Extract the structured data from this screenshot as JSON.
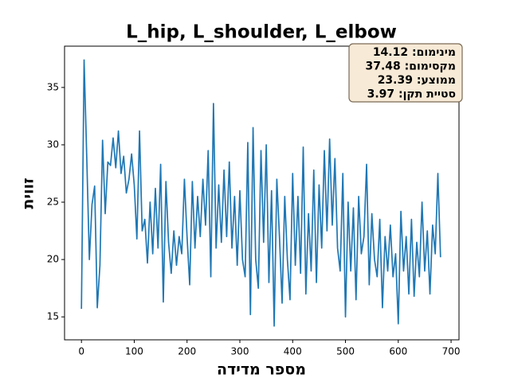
{
  "chart_data": {
    "type": "line",
    "title": "L_hip, L_shoulder, L_elbow",
    "x_label": "מספר מדידה",
    "y_label": "זווית",
    "annotations": [
      "מינימום: 14.12",
      "מקסימום: 37.48",
      "ממוצע: 23.39",
      "סטיית תקן: 3.97"
    ],
    "x": [
      0,
      5,
      10,
      15,
      20,
      25,
      30,
      35,
      40,
      45,
      50,
      55,
      60,
      65,
      70,
      75,
      80,
      85,
      90,
      95,
      100,
      105,
      110,
      115,
      120,
      125,
      130,
      135,
      140,
      145,
      150,
      155,
      160,
      165,
      170,
      175,
      180,
      185,
      190,
      195,
      200,
      205,
      210,
      215,
      220,
      225,
      230,
      235,
      240,
      245,
      250,
      255,
      260,
      265,
      270,
      275,
      280,
      285,
      290,
      295,
      300,
      305,
      310,
      315,
      320,
      325,
      330,
      335,
      340,
      345,
      350,
      355,
      360,
      365,
      370,
      375,
      380,
      385,
      390,
      395,
      400,
      405,
      410,
      415,
      420,
      425,
      430,
      435,
      440,
      445,
      450,
      455,
      460,
      465,
      470,
      475,
      480,
      485,
      490,
      495,
      500,
      505,
      510,
      515,
      520,
      525,
      530,
      535,
      540,
      545,
      550,
      555,
      560,
      565,
      570,
      575,
      580,
      585,
      590,
      595,
      600,
      605,
      610,
      615,
      620,
      625,
      630,
      635,
      640,
      645,
      650,
      655,
      660,
      665,
      670,
      675,
      680
    ],
    "series": [
      {
        "name": "L_hip, L_shoulder, L_elbow",
        "color": "#1f77b4",
        "values": [
          15.7,
          37.4,
          29.0,
          20.0,
          24.8,
          26.4,
          15.8,
          19.5,
          30.4,
          24.0,
          28.5,
          28.2,
          30.6,
          28.0,
          31.2,
          27.5,
          29.0,
          25.8,
          27.0,
          29.2,
          26.5,
          21.8,
          31.2,
          22.5,
          23.5,
          19.7,
          25.0,
          20.5,
          26.2,
          21.0,
          28.3,
          16.3,
          26.8,
          21.5,
          18.8,
          22.5,
          19.5,
          22.0,
          20.5,
          27.0,
          22.0,
          17.8,
          26.8,
          21.0,
          25.5,
          22.0,
          27.0,
          23.0,
          29.5,
          18.5,
          33.6,
          21.0,
          26.5,
          21.5,
          27.8,
          22.0,
          28.5,
          21.0,
          25.5,
          19.5,
          26.0,
          20.0,
          18.5,
          30.2,
          15.2,
          31.5,
          20.0,
          17.5,
          29.5,
          21.5,
          30.0,
          18.0,
          26.0,
          14.2,
          27.0,
          22.0,
          16.2,
          25.5,
          20.0,
          16.5,
          27.5,
          19.5,
          25.5,
          18.8,
          29.8,
          17.0,
          24.0,
          19.0,
          27.8,
          18.0,
          26.5,
          21.0,
          29.5,
          22.5,
          30.5,
          23.0,
          28.8,
          21.0,
          19.0,
          27.5,
          15.0,
          25.0,
          19.0,
          24.5,
          16.5,
          25.5,
          20.5,
          22.0,
          28.3,
          17.8,
          24.0,
          20.0,
          18.5,
          23.5,
          15.8,
          22.0,
          19.0,
          23.0,
          18.5,
          20.5,
          14.4,
          24.2,
          19.0,
          22.0,
          17.0,
          23.5,
          16.8,
          21.5,
          18.5,
          25.0,
          19.0,
          22.5,
          17.0,
          23.0,
          20.5,
          27.5,
          20.2
        ]
      }
    ],
    "xlim": [
      -32,
      715
    ],
    "ylim": [
      13,
      38.6
    ],
    "xticks": [
      0,
      100,
      200,
      300,
      400,
      500,
      600,
      700
    ],
    "yticks": [
      15,
      20,
      25,
      30,
      35
    ]
  }
}
